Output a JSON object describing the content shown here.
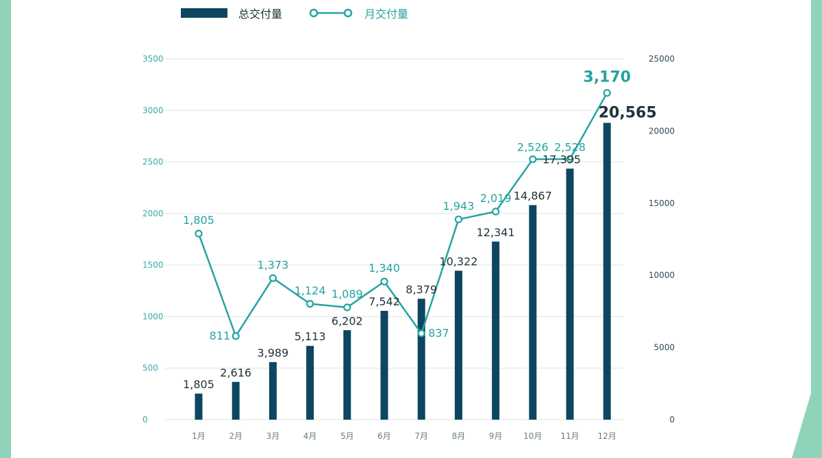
{
  "colors": {
    "bar": "#0d4660",
    "line": "#24a3a0",
    "left_axis_text": "#39a9a6",
    "right_axis_text": "#314a55",
    "bar_label": "#20323a",
    "grid": "#dfe3e3",
    "stripe": "#8fd4b8"
  },
  "chart_data": {
    "type": "bar+line",
    "categories": [
      "1月",
      "2月",
      "3月",
      "4月",
      "5月",
      "6月",
      "7月",
      "8月",
      "9月",
      "10月",
      "11月",
      "12月"
    ],
    "series": [
      {
        "name": "总交付量",
        "type": "bar",
        "axis": "right",
        "values": [
          1805,
          2616,
          3989,
          5113,
          6202,
          7542,
          8379,
          10322,
          12341,
          14867,
          17395,
          20565
        ],
        "labels": [
          "1,805",
          "2,616",
          "3,989",
          "5,113",
          "6,202",
          "7,542",
          "8,379",
          "10,322",
          "12,341",
          "14,867",
          "17,395",
          "20,565"
        ]
      },
      {
        "name": "月交付量",
        "type": "line",
        "axis": "left",
        "values": [
          1805,
          811,
          1373,
          1124,
          1089,
          1340,
          837,
          1943,
          2019,
          2526,
          2528,
          3170
        ],
        "labels": [
          "1,805",
          "811",
          "1,373",
          "1,124",
          "1,089",
          "1,340",
          "837",
          "1,943",
          "2,019",
          "2,526",
          "2,528",
          "3,170"
        ]
      }
    ],
    "left_axis": {
      "ylim": [
        0,
        3500
      ],
      "ticks": [
        "0",
        "500",
        "1000",
        "1500",
        "2000",
        "2500",
        "3000",
        "3500"
      ]
    },
    "right_axis": {
      "ylim": [
        0,
        25000
      ],
      "ticks": [
        "0",
        "5000",
        "10000",
        "15000",
        "20000",
        "25000"
      ]
    },
    "legend": {
      "placement": "top-left",
      "items": [
        "总交付量",
        "月交付量"
      ]
    },
    "grid": true
  }
}
